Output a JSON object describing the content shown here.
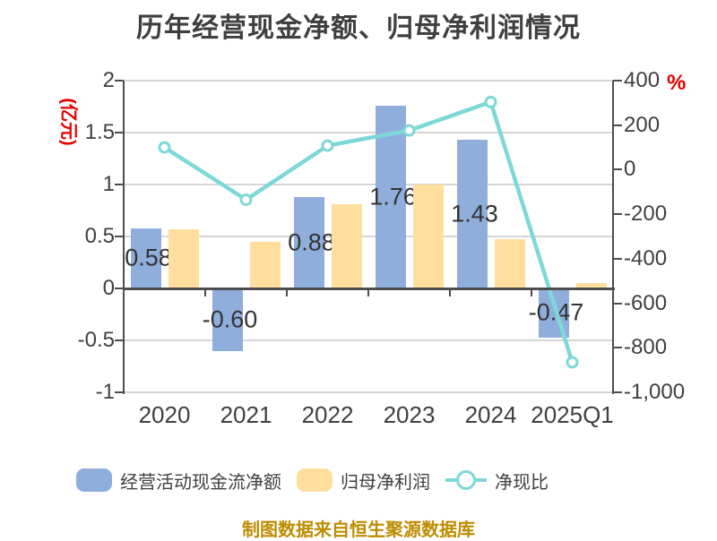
{
  "title": "历年经营现金净额、归母净利润情况",
  "footer": "制图数据来自恒生聚源数据库",
  "colors": {
    "bar_cashflow": "#8FAEDC",
    "bar_profit": "#FFDE9E",
    "line": "#7FD8D8",
    "title_text": "#3F3F3F",
    "axis_text": "#404040",
    "axis_line": "#4D4D4D",
    "gridline": "#D6D6D6",
    "accent_red": "#E60000",
    "footer_text": "#BD8C00",
    "bar_label_text": "#333333"
  },
  "legend": [
    {
      "key": "cashflow",
      "type": "bar",
      "label": "经营活动现金流净额"
    },
    {
      "key": "profit",
      "type": "bar",
      "label": "归母净利润"
    },
    {
      "key": "ratio",
      "type": "line",
      "label": "净现比"
    }
  ],
  "chart_data": {
    "type": "bar+line combo",
    "categories": [
      "2020",
      "2021",
      "2022",
      "2023",
      "2024",
      "2025Q1"
    ],
    "series": [
      {
        "name": "经营活动现金流净额",
        "type": "bar",
        "axis": "left",
        "values": [
          0.58,
          -0.6,
          0.88,
          1.76,
          1.43,
          -0.47
        ],
        "labels": [
          "0.58",
          "-0.60",
          "0.88",
          "1.76",
          "1.43",
          "-0.47"
        ]
      },
      {
        "name": "归母净利润",
        "type": "bar",
        "axis": "left",
        "values": [
          0.57,
          0.45,
          0.81,
          1.0,
          0.47,
          0.05
        ]
      },
      {
        "name": "净现比",
        "type": "line",
        "axis": "right",
        "values": [
          100,
          -135,
          108,
          176,
          304,
          -865
        ]
      }
    ],
    "left_axis": {
      "name": "(亿元)",
      "min": -1,
      "max": 2,
      "ticks": [
        2,
        1.5,
        1,
        0.5,
        0,
        -0.5,
        -1
      ],
      "tick_labels": [
        "2",
        "1.5",
        "1",
        "0.5",
        "0",
        "-0.5",
        "-1"
      ]
    },
    "right_axis": {
      "name": "%",
      "min": -1000,
      "max": 400,
      "ticks": [
        400,
        200,
        0,
        -200,
        -400,
        -600,
        -800,
        -1000
      ],
      "tick_labels": [
        "400",
        "200",
        "0",
        "-200",
        "-400",
        "-600",
        "-800",
        "-1,000"
      ]
    },
    "grid": true,
    "legend_position": "bottom",
    "title": "历年经营现金净额、归母净利润情况"
  }
}
